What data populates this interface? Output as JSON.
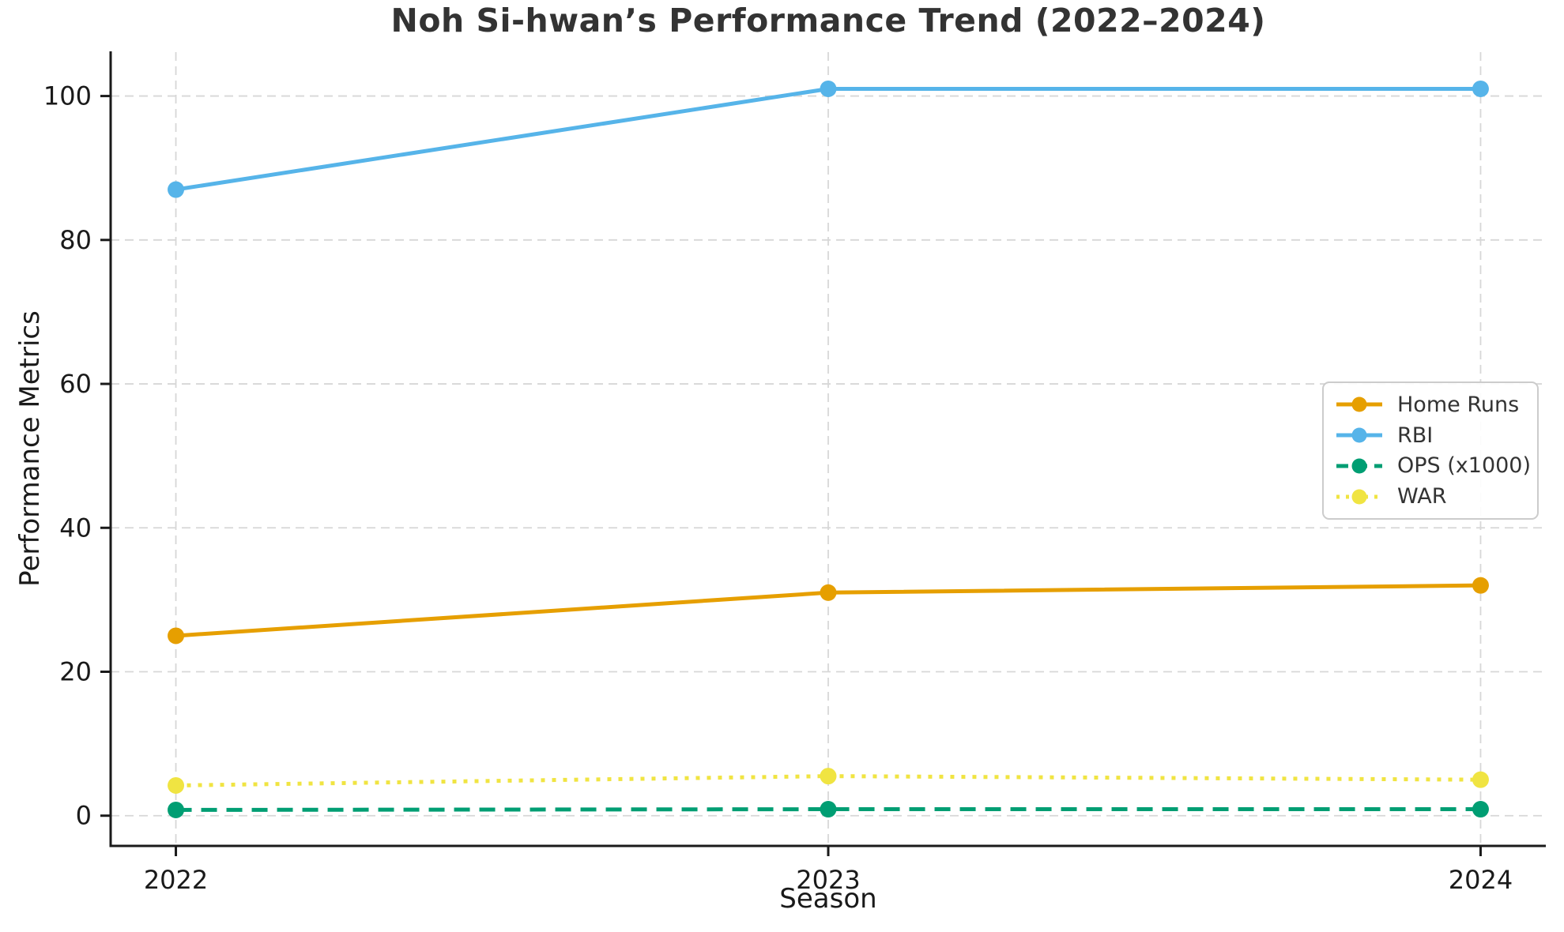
{
  "chart_data": {
    "type": "line",
    "title": "Noh Si-hwan’s Performance Trend (2022–2024)",
    "xlabel": "Season",
    "ylabel": "Performance Metrics",
    "x": [
      2022,
      2023,
      2024
    ],
    "xtick_labels": [
      "2022",
      "2023",
      "2024"
    ],
    "yticks": [
      0,
      20,
      40,
      60,
      80,
      100
    ],
    "ytick_labels": [
      "0",
      "20",
      "40",
      "60",
      "80",
      "100"
    ],
    "xlim": [
      2021.9,
      2024.1
    ],
    "ylim": [
      -4.2,
      106.1
    ],
    "grid": true,
    "grid_style": "dashed",
    "legend_position": "center right",
    "series": [
      {
        "name": "Home Runs",
        "values": [
          25,
          31,
          32
        ],
        "color": "#E69F00",
        "linestyle": "solid",
        "marker": "circle"
      },
      {
        "name": "RBI",
        "values": [
          87,
          101,
          101
        ],
        "color": "#56B4E9",
        "linestyle": "solid",
        "marker": "circle"
      },
      {
        "name": "OPS (x1000)",
        "values": [
          0.8,
          0.9,
          0.9
        ],
        "color": "#009E73",
        "linestyle": "dashed",
        "marker": "circle"
      },
      {
        "name": "WAR",
        "values": [
          4.2,
          5.5,
          5.0
        ],
        "color": "#F0E442",
        "linestyle": "dotted",
        "marker": "circle"
      }
    ]
  },
  "colors": {
    "background": "#ffffff",
    "grid": "#d7d7d7",
    "spine": "#1a1a1a",
    "tick_label": "#1a1a1a",
    "title": "#333333",
    "legend_border": "#cccccc",
    "legend_text": "#333333"
  }
}
